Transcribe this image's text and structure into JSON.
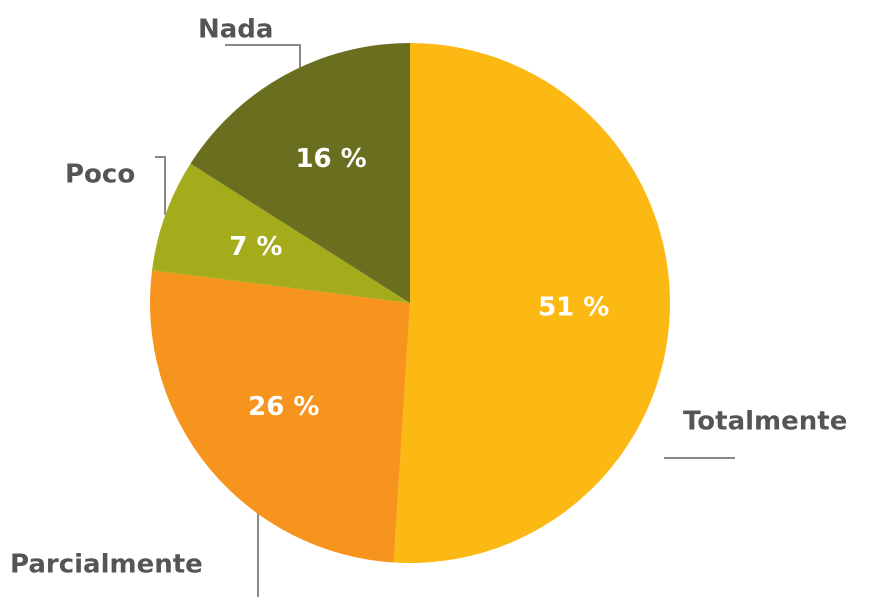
{
  "chart_data": {
    "type": "pie",
    "categories": [
      "Totalmente",
      "Parcialmente",
      "Poco",
      "Nada"
    ],
    "values": [
      51,
      26,
      7,
      16
    ],
    "value_labels": [
      "51 %",
      "26 %",
      "7 %",
      "16 %"
    ],
    "colors": [
      "#fcb813",
      "#f7941d",
      "#a4ac1c",
      "#6a6f20"
    ]
  }
}
